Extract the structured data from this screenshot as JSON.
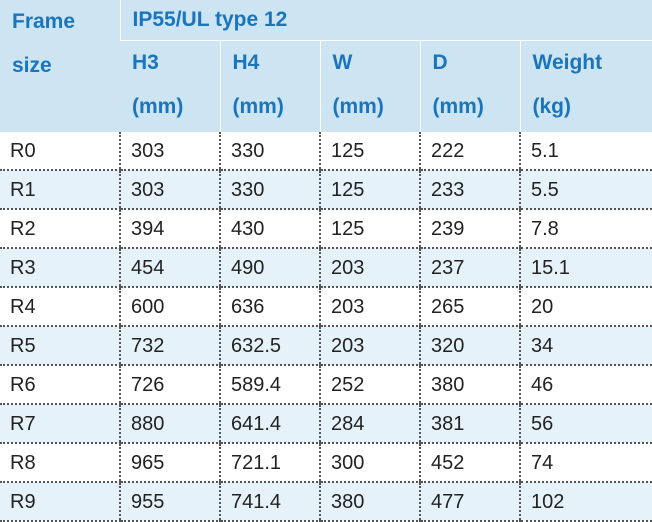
{
  "table": {
    "corner": [
      "Frame",
      "size"
    ],
    "group": "IP55/UL type 12",
    "columns": [
      {
        "name": "H3",
        "unit": "(mm)"
      },
      {
        "name": "H4",
        "unit": "(mm)"
      },
      {
        "name": "W",
        "unit": "(mm)"
      },
      {
        "name": "D",
        "unit": "(mm)"
      },
      {
        "name": "Weight",
        "unit": "(kg)"
      }
    ],
    "rows": [
      [
        "R0",
        303,
        330,
        125,
        222,
        5.1
      ],
      [
        "R1",
        303,
        330,
        125,
        233,
        5.5
      ],
      [
        "R2",
        394,
        430,
        125,
        239,
        7.8
      ],
      [
        "R3",
        454,
        490,
        203,
        237,
        15.1
      ],
      [
        "R4",
        600,
        636,
        203,
        265,
        20
      ],
      [
        "R5",
        732,
        632.5,
        203,
        320,
        34
      ],
      [
        "R6",
        726,
        589.4,
        252,
        380,
        46
      ],
      [
        "R7",
        880,
        641.4,
        284,
        381,
        56
      ],
      [
        "R8",
        965,
        721.1,
        300,
        452,
        74
      ],
      [
        "R9",
        955,
        741.4,
        380,
        477,
        102
      ]
    ]
  }
}
